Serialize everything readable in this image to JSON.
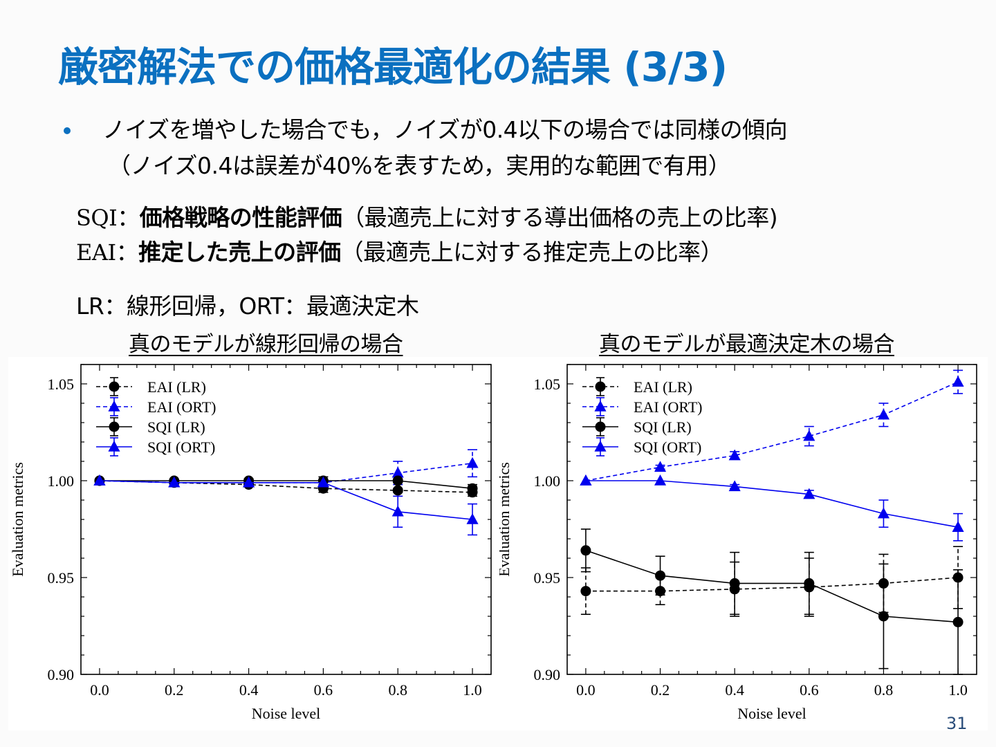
{
  "slide": {
    "title": "厳密解法での価格最適化の結果 (3/3)",
    "bullet": {
      "line1": "ノイズを増やした場合でも，ノイズが0.4以下の場合では同様の傾向",
      "line2": "（ノイズ0.4は誤差が40%を表すため，実用的な範囲で有用）"
    },
    "definitions": [
      {
        "key": "SQI",
        "sep": "：",
        "bold": "価格戦略の性能評価",
        "desc": "（最適売上に対する導出価格の売上の比率)"
      },
      {
        "key": "EAI",
        "sep": "：",
        "bold": "推定した売上の評価",
        "desc": "（最適売上に対する推定売上の比率）"
      }
    ],
    "abbrev": "LR：線形回帰，ORT：最適決定木",
    "page_number": "31",
    "accent_color": "#0b70c0"
  },
  "chart_data": [
    {
      "type": "line",
      "title": "真のモデルが線形回帰の場合",
      "xlabel": "Noise level",
      "ylabel": "Evaluation metrics",
      "xlim": [
        -0.05,
        1.05
      ],
      "ylim": [
        0.9,
        1.06
      ],
      "xticks": [
        "0.0",
        "0.2",
        "0.4",
        "0.6",
        "0.8",
        "1.0"
      ],
      "yticks": [
        "0.90",
        "0.95",
        "1.00",
        "1.05"
      ],
      "grid": false,
      "legend_position": "top-left",
      "x": [
        0.0,
        0.2,
        0.4,
        0.6,
        0.8,
        1.0
      ],
      "series": [
        {
          "name": "EAI (LR)",
          "color": "#000000",
          "dashed": true,
          "marker": "circle",
          "values": [
            1.0,
            0.999,
            0.998,
            0.996,
            0.995,
            0.994
          ],
          "errors": [
            0.0,
            0.0,
            0.001,
            0.002,
            0.001,
            0.002
          ]
        },
        {
          "name": "EAI (ORT)",
          "color": "#0000ee",
          "dashed": true,
          "marker": "triangle",
          "values": [
            1.0,
            0.999,
            0.999,
            0.999,
            1.004,
            1.009
          ],
          "errors": [
            0.0,
            0.0,
            0.0,
            0.0,
            0.006,
            0.007
          ]
        },
        {
          "name": "SQI (LR)",
          "color": "#000000",
          "dashed": false,
          "marker": "circle",
          "values": [
            1.0,
            1.0,
            1.0,
            1.0,
            1.0,
            0.996
          ],
          "errors": [
            0.0,
            0.0,
            0.001,
            0.002,
            0.001,
            0.002
          ]
        },
        {
          "name": "SQI (ORT)",
          "color": "#0000ee",
          "dashed": false,
          "marker": "triangle",
          "values": [
            1.0,
            0.999,
            0.999,
            0.999,
            0.984,
            0.98
          ],
          "errors": [
            0.0,
            0.0,
            0.0,
            0.0,
            0.008,
            0.008
          ]
        }
      ]
    },
    {
      "type": "line",
      "title": "真のモデルが最適決定木の場合",
      "xlabel": "Noise level",
      "ylabel": "Evaluation metrics",
      "xlim": [
        -0.05,
        1.05
      ],
      "ylim": [
        0.9,
        1.06
      ],
      "xticks": [
        "0.0",
        "0.2",
        "0.4",
        "0.6",
        "0.8",
        "1.0"
      ],
      "yticks": [
        "0.90",
        "0.95",
        "1.00",
        "1.05"
      ],
      "grid": false,
      "legend_position": "top-left",
      "x": [
        0.0,
        0.2,
        0.4,
        0.6,
        0.8,
        1.0
      ],
      "series": [
        {
          "name": "EAI (LR)",
          "color": "#000000",
          "dashed": true,
          "marker": "circle",
          "values": [
            0.943,
            0.943,
            0.944,
            0.945,
            0.947,
            0.95
          ],
          "errors": [
            0.012,
            0.007,
            0.014,
            0.015,
            0.015,
            0.016
          ]
        },
        {
          "name": "EAI (ORT)",
          "color": "#0000ee",
          "dashed": true,
          "marker": "triangle",
          "values": [
            1.0,
            1.007,
            1.013,
            1.023,
            1.034,
            1.051
          ],
          "errors": [
            0.0,
            0.001,
            0.002,
            0.005,
            0.006,
            0.006
          ]
        },
        {
          "name": "SQI (LR)",
          "color": "#000000",
          "dashed": false,
          "marker": "circle",
          "values": [
            0.964,
            0.951,
            0.947,
            0.947,
            0.93,
            0.927
          ],
          "errors": [
            0.011,
            0.01,
            0.016,
            0.016,
            0.027,
            0.027
          ]
        },
        {
          "name": "SQI (ORT)",
          "color": "#0000ee",
          "dashed": false,
          "marker": "triangle",
          "values": [
            1.0,
            1.0,
            0.997,
            0.993,
            0.983,
            0.976
          ],
          "errors": [
            0.0,
            0.0,
            0.001,
            0.002,
            0.007,
            0.007
          ]
        }
      ]
    }
  ]
}
